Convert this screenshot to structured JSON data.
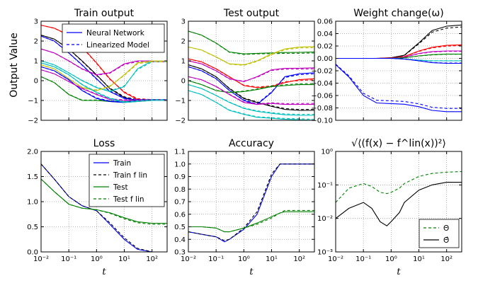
{
  "figure": {
    "y_axis_label": "Output Value",
    "x_axis_label": "t",
    "x_ticks": [
      "10⁻²",
      "10⁻¹",
      "10⁰",
      "10¹",
      "10²"
    ]
  },
  "chart_data": [
    {
      "id": "train_output",
      "type": "line",
      "title": "Train output",
      "xscale": "log",
      "xlim": [
        0.01,
        350
      ],
      "ylim": [
        -2,
        3
      ],
      "yticks": [
        -2,
        -1,
        0,
        1,
        2,
        3
      ],
      "grid": true,
      "legend": "top-right",
      "legend_entries": [
        {
          "label": "Neural Network",
          "style": "solid",
          "color": "#0000ff"
        },
        {
          "label": "Linearized Model",
          "style": "dashed",
          "color": "#0000ff"
        }
      ],
      "x": [
        0.01,
        0.03,
        0.1,
        0.3,
        1,
        3,
        10,
        30,
        100,
        350
      ],
      "series": [
        {
          "color": "#ff0000",
          "values": [
            2.8,
            2.65,
            2.3,
            1.7,
            0.9,
            0.1,
            -0.6,
            -0.95,
            -1.0,
            -1.0
          ]
        },
        {
          "color": "#000000",
          "values": [
            2.3,
            2.1,
            1.6,
            1.0,
            0.3,
            -0.4,
            -0.85,
            -1.0,
            -1.0,
            -1.0
          ]
        },
        {
          "color": "#0000ff",
          "values": [
            2.25,
            2.0,
            1.4,
            0.8,
            0.1,
            -0.55,
            -0.9,
            -1.0,
            -1.0,
            -1.0
          ]
        },
        {
          "color": "#00bfbf",
          "values": [
            1.0,
            0.8,
            0.4,
            0.0,
            -0.35,
            -0.55,
            -0.3,
            0.6,
            1.0,
            1.0
          ]
        },
        {
          "color": "#bf00bf",
          "values": [
            1.6,
            1.4,
            1.0,
            0.6,
            0.3,
            0.4,
            0.85,
            1.0,
            1.0,
            1.0
          ]
        },
        {
          "color": "#bfbf00",
          "values": [
            0.8,
            0.6,
            0.1,
            -0.35,
            -0.5,
            -0.3,
            0.3,
            0.9,
            1.0,
            1.0
          ]
        },
        {
          "color": "#008000",
          "values": [
            0.2,
            -0.1,
            -0.7,
            -1.0,
            -1.0,
            -1.05,
            -1.1,
            -1.05,
            -1.0,
            -1.0
          ]
        },
        {
          "color": "#0000ff",
          "values": [
            0.7,
            0.5,
            0.05,
            -0.5,
            -0.9,
            -1.05,
            -1.1,
            -1.0,
            -1.0,
            -1.0
          ]
        },
        {
          "color": "#bf00bf",
          "values": [
            0.55,
            0.35,
            -0.05,
            -0.4,
            -0.7,
            -0.95,
            -1.0,
            -1.0,
            -1.0,
            -1.0
          ]
        },
        {
          "color": "#00bfbf",
          "values": [
            0.9,
            0.7,
            0.3,
            -0.2,
            -0.6,
            -0.9,
            -1.1,
            -1.05,
            -1.0,
            -1.0
          ]
        }
      ]
    },
    {
      "id": "test_output",
      "type": "line",
      "title": "Test output",
      "xscale": "log",
      "xlim": [
        0.01,
        350
      ],
      "ylim": [
        -2,
        3
      ],
      "yticks": [
        -2,
        -1,
        0,
        1,
        2,
        3
      ],
      "grid": true,
      "x": [
        0.01,
        0.03,
        0.1,
        0.3,
        1,
        3,
        10,
        30,
        100,
        350
      ],
      "series": [
        {
          "color": "#008000",
          "values": [
            2.5,
            2.3,
            1.9,
            1.45,
            1.35,
            1.38,
            1.4,
            1.42,
            1.43,
            1.45
          ]
        },
        {
          "color": "#bfbf00",
          "values": [
            1.7,
            1.55,
            1.2,
            0.85,
            0.8,
            1.0,
            1.35,
            1.6,
            1.7,
            1.72
          ]
        },
        {
          "color": "#ff0000",
          "values": [
            1.1,
            0.95,
            0.6,
            0.2,
            -0.25,
            -0.35,
            -0.3,
            -0.1,
            0.05,
            0.1
          ]
        },
        {
          "color": "#bf00bf",
          "values": [
            1.0,
            0.85,
            0.5,
            0.1,
            -0.05,
            0.2,
            0.55,
            0.62,
            0.63,
            0.65
          ]
        },
        {
          "color": "#000000",
          "values": [
            0.8,
            0.6,
            0.2,
            -0.4,
            -0.9,
            -1.1,
            -1.3,
            -1.45,
            -1.5,
            -1.5
          ]
        },
        {
          "color": "#0000ff",
          "values": [
            0.7,
            0.5,
            0.1,
            -0.5,
            -1.0,
            -1.2,
            -0.6,
            0.2,
            0.35,
            0.4
          ]
        },
        {
          "color": "#008000",
          "values": [
            0.0,
            -0.2,
            -0.5,
            -0.6,
            -0.55,
            -0.45,
            -0.3,
            -0.25,
            -0.2,
            -0.2
          ]
        },
        {
          "color": "#00bfbf",
          "values": [
            -0.2,
            -0.4,
            -0.75,
            -1.1,
            -1.4,
            -1.55,
            -1.65,
            -1.72,
            -1.75,
            -1.75
          ]
        },
        {
          "color": "#bf00bf",
          "values": [
            0.2,
            0.05,
            -0.3,
            -0.7,
            -1.1,
            -1.2,
            -1.15,
            -1.2,
            -1.2,
            -1.2
          ]
        },
        {
          "color": "#00bfbf",
          "values": [
            -0.5,
            -0.7,
            -1.1,
            -1.5,
            -1.7,
            -1.85,
            -1.9,
            -1.95,
            -1.97,
            -2.0
          ]
        }
      ]
    },
    {
      "id": "weight_change",
      "type": "line",
      "title": "Weight change(ω)",
      "xscale": "log",
      "xlim": [
        0.01,
        350
      ],
      "ylim": [
        -0.1,
        0.06
      ],
      "yticks": [
        -0.1,
        -0.08,
        -0.06,
        -0.04,
        -0.02,
        0.0,
        0.02,
        0.04,
        0.06
      ],
      "ytick_labels": [
        "−0.10",
        "−0.08",
        "−0.06",
        "−0.04",
        "−0.02",
        "0.00",
        "0.02",
        "0.04",
        "0.06"
      ],
      "grid": true,
      "x": [
        0.01,
        0.03,
        0.1,
        0.3,
        1,
        3,
        10,
        30,
        100,
        350
      ],
      "series": [
        {
          "color": "#000000",
          "values": [
            0,
            0,
            0,
            0,
            0.001,
            0.005,
            0.025,
            0.045,
            0.052,
            0.054
          ]
        },
        {
          "color": "#ff0000",
          "values": [
            0,
            0,
            0,
            0,
            0.0005,
            0.003,
            0.012,
            0.018,
            0.021,
            0.022
          ]
        },
        {
          "color": "#bf00bf",
          "values": [
            0,
            0,
            0,
            0,
            0,
            0.002,
            0.008,
            0.011,
            0.012,
            0.012
          ]
        },
        {
          "color": "#008000",
          "values": [
            0,
            0,
            0,
            0,
            0,
            0.001,
            0.004,
            0.006,
            0.007,
            0.007
          ]
        },
        {
          "color": "#00bfbf",
          "values": [
            0,
            0,
            0,
            0,
            0,
            -0.001,
            -0.003,
            -0.004,
            -0.004,
            -0.004
          ]
        },
        {
          "color": "#0000ff",
          "values": [
            0,
            0,
            0,
            0,
            0,
            -0.001,
            -0.004,
            -0.007,
            -0.008,
            -0.008
          ]
        },
        {
          "color": "#0000ff",
          "values": [
            -0.01,
            -0.03,
            -0.06,
            -0.072,
            -0.073,
            -0.074,
            -0.078,
            -0.084,
            -0.086,
            -0.086
          ]
        }
      ]
    },
    {
      "id": "loss",
      "type": "line",
      "title": "Loss",
      "xscale": "log",
      "xlim": [
        0.01,
        350
      ],
      "ylim": [
        0,
        2.0
      ],
      "yticks": [
        0,
        0.5,
        1.0,
        1.5,
        2.0
      ],
      "ytick_labels": [
        "0.0",
        "0.5",
        "1.0",
        "1.5",
        "2.0"
      ],
      "grid": true,
      "legend": "top-right",
      "x": [
        0.01,
        0.03,
        0.1,
        0.3,
        1,
        3,
        10,
        30,
        100,
        350
      ],
      "series": [
        {
          "name": "Train",
          "color": "#0000ff",
          "style": "solid",
          "values": [
            1.75,
            1.45,
            1.1,
            0.92,
            0.82,
            0.55,
            0.25,
            0.05,
            0.0,
            0.0
          ]
        },
        {
          "name": "Train f^lin",
          "color": "#000000",
          "style": "dashed",
          "values": [
            1.75,
            1.45,
            1.1,
            0.92,
            0.82,
            0.58,
            0.28,
            0.07,
            0.0,
            0.0
          ]
        },
        {
          "name": "Test",
          "color": "#008000",
          "style": "solid",
          "values": [
            1.45,
            1.2,
            0.95,
            0.87,
            0.84,
            0.78,
            0.68,
            0.6,
            0.57,
            0.57
          ]
        },
        {
          "name": "Test f^lin",
          "color": "#008000",
          "style": "dashed",
          "values": [
            1.45,
            1.2,
            0.95,
            0.87,
            0.84,
            0.77,
            0.66,
            0.58,
            0.55,
            0.55
          ]
        }
      ]
    },
    {
      "id": "accuracy",
      "type": "line",
      "title": "Accuracy",
      "xscale": "log",
      "xlim": [
        0.01,
        350
      ],
      "ylim": [
        0.3,
        1.1
      ],
      "yticks": [
        0.3,
        0.4,
        0.5,
        0.6,
        0.7,
        0.8,
        0.9,
        1.0,
        1.1
      ],
      "ytick_labels": [
        "0.3",
        "0.4",
        "0.5",
        "0.6",
        "0.7",
        "0.8",
        "0.9",
        "1.0",
        "1.1"
      ],
      "grid": true,
      "x": [
        0.01,
        0.03,
        0.1,
        0.2,
        0.3,
        1,
        3,
        10,
        20,
        30,
        100,
        350
      ],
      "series": [
        {
          "color": "#0000ff",
          "style": "solid",
          "values": [
            0.46,
            0.44,
            0.42,
            0.38,
            0.4,
            0.48,
            0.6,
            0.9,
            1.0,
            1.0,
            1.0,
            1.0
          ]
        },
        {
          "color": "#000000",
          "style": "dashed",
          "values": [
            0.46,
            0.44,
            0.42,
            0.39,
            0.4,
            0.49,
            0.62,
            0.92,
            1.0,
            1.0,
            1.0,
            1.0
          ]
        },
        {
          "color": "#008000",
          "style": "solid",
          "values": [
            0.5,
            0.5,
            0.49,
            0.46,
            0.46,
            0.49,
            0.53,
            0.58,
            0.61,
            0.62,
            0.62,
            0.62
          ]
        },
        {
          "color": "#008000",
          "style": "dashed",
          "values": [
            0.5,
            0.5,
            0.49,
            0.46,
            0.46,
            0.49,
            0.52,
            0.57,
            0.61,
            0.63,
            0.63,
            0.63
          ]
        }
      ]
    },
    {
      "id": "rmse",
      "type": "line",
      "title": "√⟨(f(x) − f^lin(x))²⟩",
      "xscale": "log",
      "xlim": [
        0.01,
        350
      ],
      "yscale": "log",
      "ylim": [
        0.001,
        1
      ],
      "yticks": [
        0.001,
        0.01,
        0.1,
        1
      ],
      "ytick_labels": [
        "10⁻³",
        "10⁻²",
        "10⁻¹",
        "10⁰"
      ],
      "grid": true,
      "legend": "bottom-right",
      "x": [
        0.01,
        0.03,
        0.1,
        0.2,
        0.4,
        0.7,
        1,
        2,
        3,
        10,
        30,
        100,
        350
      ],
      "series": [
        {
          "name": "Θ",
          "color": "#008000",
          "style": "dashed",
          "values": [
            0.03,
            0.08,
            0.11,
            0.09,
            0.06,
            0.055,
            0.06,
            0.08,
            0.11,
            0.18,
            0.22,
            0.24,
            0.25
          ]
        },
        {
          "name": "Θ̂",
          "color": "#000000",
          "style": "solid",
          "values": [
            0.01,
            0.02,
            0.03,
            0.02,
            0.008,
            0.006,
            0.008,
            0.015,
            0.03,
            0.07,
            0.1,
            0.12,
            0.12
          ]
        }
      ]
    }
  ]
}
